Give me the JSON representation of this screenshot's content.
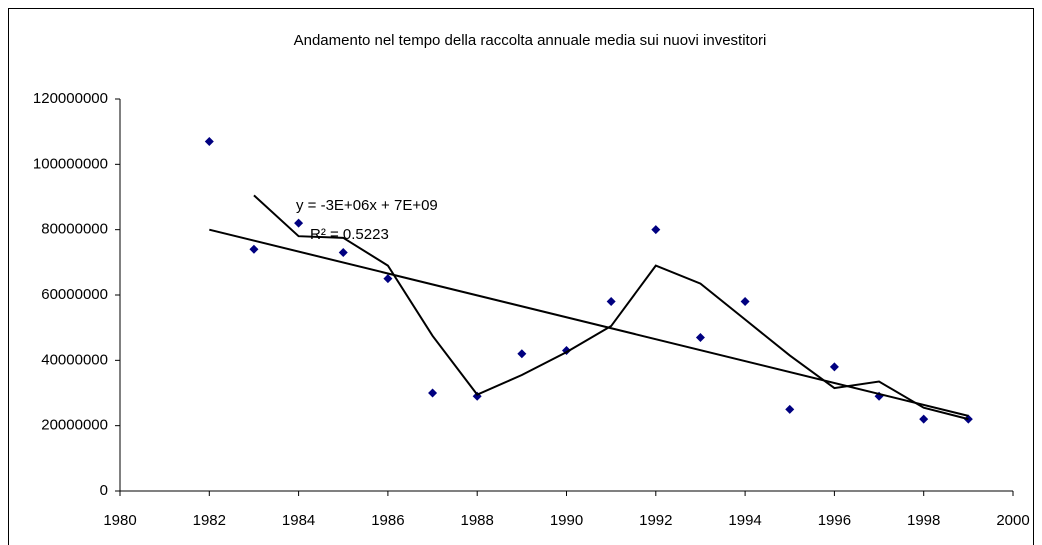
{
  "chart_data": {
    "type": "scatter",
    "title": "Andamento nel tempo della raccolta annuale media sui nuovi investitori",
    "annotations": [
      "y = -3E+06x + 7E+09",
      "R² = 0.5223"
    ],
    "xlim": [
      1980,
      2000
    ],
    "xticks": [
      1980,
      1982,
      1984,
      1986,
      1988,
      1990,
      1992,
      1994,
      1996,
      1998,
      2000
    ],
    "ylim": [
      0,
      120000000
    ],
    "yticks": [
      0,
      20000000,
      40000000,
      60000000,
      80000000,
      100000000,
      120000000
    ],
    "grid": false,
    "series": [
      {
        "style": "markers",
        "color": "#000080",
        "x": [
          1982,
          1983,
          1984,
          1985,
          1986,
          1987,
          1988,
          1989,
          1990,
          1991,
          1992,
          1993,
          1994,
          1995,
          1996,
          1997,
          1998,
          1999
        ],
        "values": [
          107000000,
          74000000,
          82000000,
          73000000,
          65000000,
          30000000,
          29000000,
          42000000,
          43000000,
          58000000,
          80000000,
          47000000,
          58000000,
          25000000,
          38000000,
          29000000,
          22000000,
          22000000
        ]
      },
      {
        "style": "line",
        "color": "#000000",
        "x": [
          1983,
          1984,
          1985,
          1986,
          1987,
          1988,
          1989,
          1990,
          1991,
          1992,
          1993,
          1994,
          1995,
          1996,
          1997,
          1998,
          1999
        ],
        "values": [
          90500000,
          78000000,
          77500000,
          69000000,
          47500000,
          29500000,
          35500000,
          42500000,
          50500000,
          69000000,
          63500000,
          52500000,
          41500000,
          31500000,
          33500000,
          25500000,
          22000000
        ]
      },
      {
        "style": "line",
        "color": "#000000",
        "x": [
          1982,
          1999
        ],
        "values": [
          80000000,
          23000000
        ]
      }
    ]
  }
}
